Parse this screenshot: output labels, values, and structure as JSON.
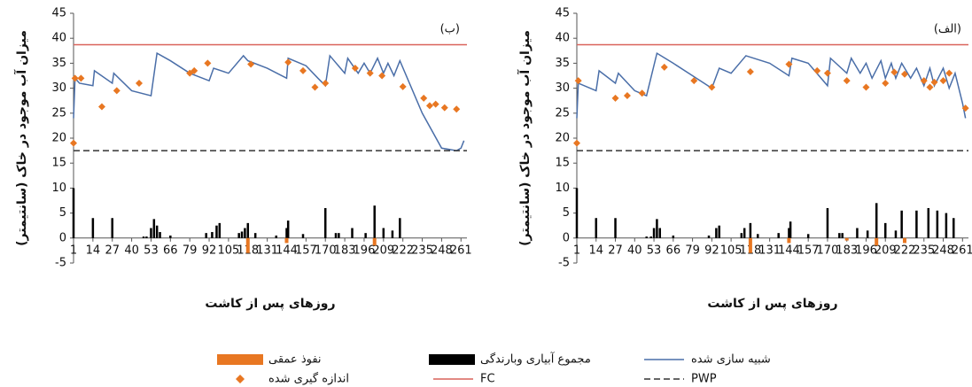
{
  "chart_data": [
    {
      "type": "combo",
      "panel_label": "(ب)",
      "ylabel": "میزان آب موجود در خاک (سانتیمتر)",
      "xlabel": "روزهای پس از کاشت",
      "xlim": [
        1,
        265
      ],
      "ylim": [
        -5,
        45
      ],
      "xticks": [
        1,
        14,
        27,
        40,
        53,
        66,
        79,
        92,
        105,
        118,
        131,
        144,
        157,
        170,
        183,
        196,
        209,
        222,
        235,
        248,
        261
      ],
      "yticks": [
        -5,
        0,
        5,
        10,
        15,
        20,
        25,
        30,
        35,
        40,
        45
      ],
      "series": [
        {
          "name": "شبیه سازی شده",
          "type": "line",
          "color": "#4a6ea8",
          "x": [
            1,
            2,
            5,
            14,
            15,
            27,
            28,
            40,
            53,
            57,
            66,
            79,
            92,
            95,
            105,
            115,
            118,
            131,
            144,
            145,
            157,
            165,
            170,
            173,
            183,
            185,
            192,
            196,
            200,
            205,
            209,
            212,
            216,
            220,
            235,
            248,
            258,
            261,
            263
          ],
          "values": [
            24,
            32,
            31,
            30.5,
            33.5,
            31,
            33,
            29.5,
            28.5,
            37,
            35.5,
            33,
            31.5,
            34,
            33,
            36.5,
            35.5,
            34,
            32,
            36,
            34.5,
            32,
            30.5,
            36.5,
            33,
            36,
            33,
            35,
            33,
            36,
            33,
            35,
            32.5,
            35.5,
            25,
            18,
            17.5,
            18,
            19.5
          ]
        },
        {
          "name": "مجموع آبیاری وبارندگی",
          "type": "bar",
          "color": "#000000",
          "x": [
            1,
            14,
            27,
            48,
            50,
            53,
            55,
            57,
            59,
            66,
            90,
            94,
            97,
            99,
            112,
            114,
            116,
            118,
            123,
            137,
            144,
            145,
            155,
            170,
            177,
            179,
            188,
            197,
            203,
            209,
            215,
            220
          ],
          "values": [
            10,
            4,
            4,
            0.3,
            0.3,
            2,
            3.8,
            2.5,
            1.2,
            0.5,
            1,
            1.2,
            2.5,
            3,
            1,
            1.3,
            2,
            3,
            1,
            0.5,
            2,
            3.5,
            0.8,
            6,
            1,
            1,
            2,
            1,
            6.5,
            2,
            1.5,
            4
          ]
        },
        {
          "name": "نفوذ عمقی",
          "type": "bar",
          "color": "#e87722",
          "x": [
            118,
            144,
            203
          ],
          "values": [
            -3,
            -1,
            -1.5
          ]
        },
        {
          "name": "اندازه گیری شده",
          "type": "scatter",
          "color": "#e87722",
          "x": [
            1,
            2,
            6,
            20,
            30,
            45,
            79,
            82,
            91,
            120,
            145,
            155,
            163,
            170,
            190,
            200,
            208,
            222,
            236,
            240,
            244,
            250,
            258
          ],
          "values": [
            19,
            32,
            32,
            26.3,
            29.5,
            31,
            33,
            33.5,
            35,
            34.8,
            35.2,
            33.5,
            30.2,
            31,
            34,
            33,
            32.5,
            30.3,
            28,
            26.5,
            26.8,
            26.1,
            25.8
          ]
        },
        {
          "name": "FC",
          "type": "hline",
          "color": "#d9625a",
          "value": 38.7
        },
        {
          "name": "PWP",
          "type": "hline",
          "color": "#333333",
          "dashed": true,
          "value": 17.5
        }
      ]
    },
    {
      "type": "combo",
      "panel_label": "(الف)",
      "ylabel": "میزان آب موجود در خاک (سانتیمتر)",
      "xlabel": "روزهای پس از کاشت",
      "xlim": [
        1,
        265
      ],
      "ylim": [
        -5,
        45
      ],
      "xticks": [
        1,
        14,
        27,
        40,
        53,
        66,
        79,
        92,
        105,
        118,
        131,
        144,
        157,
        170,
        183,
        196,
        209,
        222,
        235,
        248,
        261
      ],
      "yticks": [
        -5,
        0,
        5,
        10,
        15,
        20,
        25,
        30,
        35,
        40,
        45
      ],
      "series": [
        {
          "name": "شبیه سازی شده",
          "type": "line",
          "color": "#4a6ea8",
          "x": [
            1,
            2,
            14,
            16,
            27,
            29,
            40,
            48,
            55,
            66,
            79,
            92,
            97,
            105,
            115,
            131,
            144,
            146,
            157,
            170,
            172,
            183,
            186,
            192,
            196,
            200,
            206,
            209,
            213,
            216,
            220,
            226,
            230,
            235,
            239,
            242,
            248,
            252,
            256,
            261,
            263
          ],
          "values": [
            24,
            31,
            29.5,
            33.5,
            31,
            33,
            29.5,
            28.5,
            37,
            35,
            32.5,
            30,
            34,
            33,
            36.5,
            35,
            32.5,
            36,
            35,
            30.5,
            36,
            33,
            36,
            33,
            35,
            32,
            35.5,
            32,
            35,
            32,
            35,
            32,
            34,
            30.5,
            34,
            30.5,
            34,
            30,
            33,
            27,
            24
          ]
        },
        {
          "name": "مجموع آبیاری وبارندگی",
          "type": "bar",
          "color": "#000000",
          "x": [
            1,
            14,
            27,
            48,
            51,
            53,
            55,
            57,
            66,
            90,
            95,
            97,
            112,
            114,
            118,
            123,
            137,
            144,
            145,
            157,
            170,
            178,
            180,
            190,
            197,
            203,
            209,
            216,
            220,
            230,
            238,
            244,
            250,
            255
          ],
          "values": [
            10,
            4,
            4,
            0.3,
            0.3,
            2,
            3.8,
            2,
            0.5,
            0.5,
            2,
            2.5,
            1,
            2,
            3,
            0.8,
            1,
            2,
            3.3,
            0.8,
            6,
            1,
            1,
            2,
            1.5,
            7,
            3,
            1.5,
            5.5,
            5.5,
            6,
            5.5,
            5,
            4
          ]
        },
        {
          "name": "نفوذ عمقی",
          "type": "bar",
          "color": "#e87722",
          "x": [
            118,
            144,
            183,
            203,
            222
          ],
          "values": [
            -3,
            -1,
            -0.5,
            -1.5,
            -1
          ]
        },
        {
          "name": "اندازه گیری شده",
          "type": "scatter",
          "color": "#e87722",
          "x": [
            1,
            2,
            27,
            35,
            45,
            60,
            80,
            92,
            118,
            144,
            163,
            170,
            183,
            196,
            209,
            215,
            222,
            235,
            239,
            242,
            248,
            252,
            263
          ],
          "values": [
            19,
            31.5,
            28,
            28.5,
            29,
            34.2,
            31.5,
            30.2,
            33.3,
            34.8,
            33.5,
            33,
            31.5,
            30.2,
            31,
            33.2,
            32.8,
            31.5,
            30.2,
            31.2,
            31.5,
            33,
            26
          ]
        },
        {
          "name": "FC",
          "type": "hline",
          "color": "#d9625a",
          "value": 38.7
        },
        {
          "name": "PWP",
          "type": "hline",
          "color": "#333333",
          "dashed": true,
          "value": 17.5
        }
      ]
    }
  ]
}
